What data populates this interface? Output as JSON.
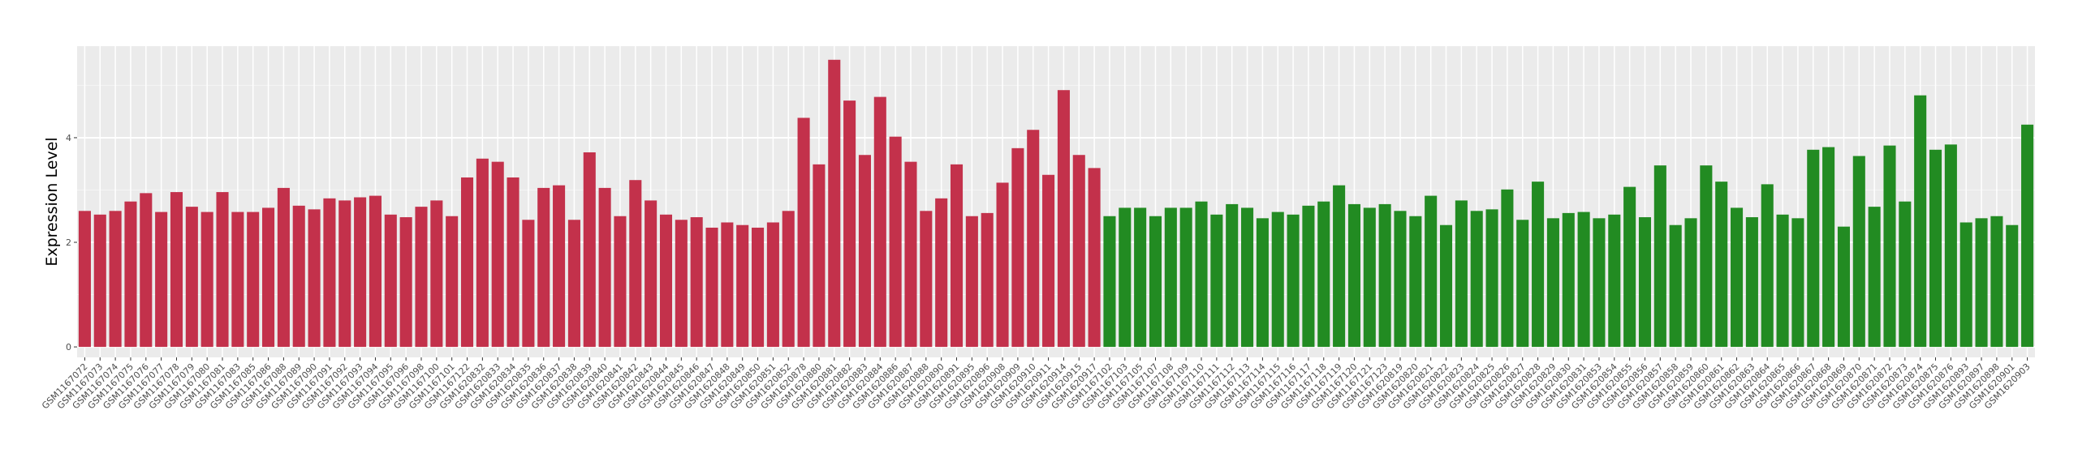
{
  "chart_data": {
    "type": "bar",
    "ylabel": "Expression Level",
    "ylim": [
      -0.2,
      5.75
    ],
    "yticks": [
      0,
      2,
      4
    ],
    "minor_yticks": [
      1,
      3,
      5
    ],
    "grid": true,
    "series": [
      {
        "color": "#c3314b",
        "categories": [
          "GSM1167072",
          "GSM1167073",
          "GSM1167074",
          "GSM1167075",
          "GSM1167076",
          "GSM1167077",
          "GSM1167078",
          "GSM1167079",
          "GSM1167080",
          "GSM1167081",
          "GSM1167083",
          "GSM1167085",
          "GSM1167086",
          "GSM1167088",
          "GSM1167089",
          "GSM1167090",
          "GSM1167091",
          "GSM1167092",
          "GSM1167093",
          "GSM1167094",
          "GSM1167095",
          "GSM1167096",
          "GSM1167098",
          "GSM1167100",
          "GSM1167101",
          "GSM1167122",
          "GSM1620832",
          "GSM1620833",
          "GSM1620834",
          "GSM1620835",
          "GSM1620836",
          "GSM1620837",
          "GSM1620838",
          "GSM1620839",
          "GSM1620840",
          "GSM1620841",
          "GSM1620842",
          "GSM1620843",
          "GSM1620844",
          "GSM1620845",
          "GSM1620846",
          "GSM1620847",
          "GSM1620848",
          "GSM1620849",
          "GSM1620850",
          "GSM1620851",
          "GSM1620852",
          "GSM1620878",
          "GSM1620880",
          "GSM1620881",
          "GSM1620882",
          "GSM1620883",
          "GSM1620884",
          "GSM1620886",
          "GSM1620887",
          "GSM1620888",
          "GSM1620890",
          "GSM1620891",
          "GSM1620895",
          "GSM1620896",
          "GSM1620908",
          "GSM1620909",
          "GSM1620910",
          "GSM1620911",
          "GSM1620914",
          "GSM1620915",
          "GSM1620917"
        ],
        "values": [
          2.6,
          2.53,
          2.6,
          2.78,
          2.94,
          2.58,
          2.96,
          2.68,
          2.58,
          2.96,
          2.58,
          2.58,
          2.66,
          3.04,
          2.7,
          2.63,
          2.84,
          2.8,
          2.86,
          2.89,
          2.53,
          2.48,
          2.68,
          2.8,
          2.5,
          3.24,
          3.6,
          3.54,
          3.24,
          2.43,
          3.04,
          3.09,
          2.43,
          3.72,
          3.04,
          2.5,
          3.19,
          2.8,
          2.53,
          2.43,
          2.48,
          2.28,
          2.38,
          2.33,
          2.28,
          2.38,
          2.6,
          4.38,
          3.49,
          5.49,
          4.71,
          3.67,
          4.78,
          4.02,
          3.54,
          2.6,
          2.84,
          3.49,
          2.5,
          2.56,
          3.14,
          3.8,
          4.15,
          3.29,
          4.91,
          3.67,
          3.42
        ]
      },
      {
        "color": "#228b22",
        "categories": [
          "GSM1167102",
          "GSM1167103",
          "GSM1167105",
          "GSM1167107",
          "GSM1167108",
          "GSM1167109",
          "GSM1167110",
          "GSM1167111",
          "GSM1167112",
          "GSM1167113",
          "GSM1167114",
          "GSM1167115",
          "GSM1167116",
          "GSM1167117",
          "GSM1167118",
          "GSM1167119",
          "GSM1167120",
          "GSM1167121",
          "GSM1167123",
          "GSM1620819",
          "GSM1620820",
          "GSM1620821",
          "GSM1620822",
          "GSM1620823",
          "GSM1620824",
          "GSM1620825",
          "GSM1620826",
          "GSM1620827",
          "GSM1620828",
          "GSM1620829",
          "GSM1620830",
          "GSM1620831",
          "GSM1620853",
          "GSM1620854",
          "GSM1620855",
          "GSM1620856",
          "GSM1620857",
          "GSM1620858",
          "GSM1620859",
          "GSM1620860",
          "GSM1620861",
          "GSM1620862",
          "GSM1620863",
          "GSM1620864",
          "GSM1620865",
          "GSM1620866",
          "GSM1620867",
          "GSM1620868",
          "GSM1620869",
          "GSM1620870",
          "GSM1620871",
          "GSM1620872",
          "GSM1620873",
          "GSM1620874",
          "GSM1620875",
          "GSM1620876",
          "GSM1620893",
          "GSM1620897",
          "GSM1620898",
          "GSM1620901",
          "GSM1620903"
        ],
        "values": [
          2.5,
          2.66,
          2.66,
          2.5,
          2.66,
          2.66,
          2.78,
          2.53,
          2.73,
          2.66,
          2.46,
          2.58,
          2.53,
          2.7,
          2.78,
          3.09,
          2.73,
          2.66,
          2.73,
          2.6,
          2.5,
          2.89,
          2.33,
          2.8,
          2.6,
          2.63,
          3.01,
          2.43,
          3.16,
          2.46,
          2.56,
          2.58,
          2.46,
          2.53,
          3.06,
          2.48,
          3.47,
          2.33,
          2.46,
          3.47,
          3.16,
          2.66,
          2.48,
          3.11,
          2.53,
          2.46,
          3.77,
          3.82,
          2.3,
          3.65,
          2.68,
          3.85,
          2.78,
          4.81,
          3.77,
          3.87,
          2.38,
          2.46,
          2.5,
          2.33,
          4.25
        ]
      }
    ]
  }
}
